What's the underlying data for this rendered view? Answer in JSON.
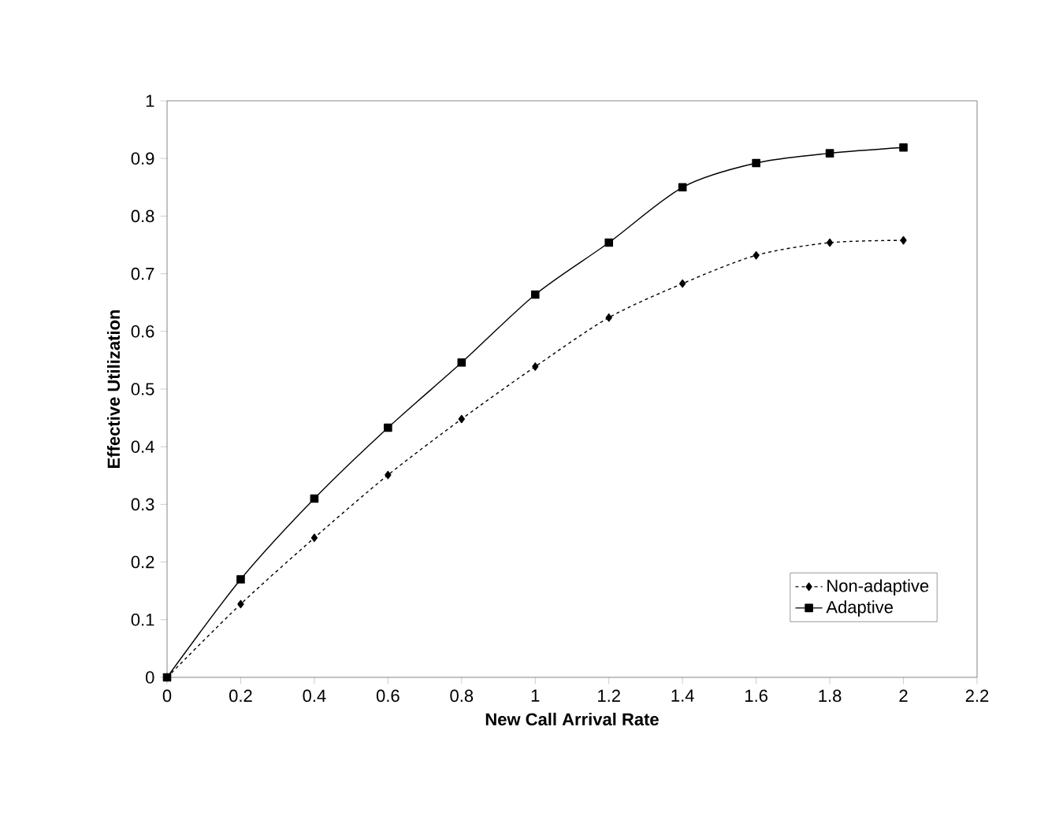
{
  "chart_data": {
    "type": "line",
    "xlabel": "New Call Arrival Rate",
    "ylabel": "Effective Utilization",
    "x": [
      0,
      0.2,
      0.4,
      0.6,
      0.8,
      1,
      1.2,
      1.4,
      1.6,
      1.8,
      2
    ],
    "series": [
      {
        "name": "Non-adaptive",
        "color": "#000000",
        "marker": "diamond",
        "line_style": "dotted",
        "values": [
          0,
          0.127,
          0.242,
          0.351,
          0.448,
          0.539,
          0.624,
          0.683,
          0.732,
          0.754,
          0.758
        ]
      },
      {
        "name": "Adaptive",
        "color": "#000000",
        "marker": "square",
        "line_style": "solid",
        "values": [
          0,
          0.17,
          0.31,
          0.433,
          0.546,
          0.664,
          0.754,
          0.85,
          0.892,
          0.909,
          0.919
        ]
      }
    ],
    "xlim": [
      0,
      2.2
    ],
    "xticks": [
      0,
      0.2,
      0.4,
      0.6,
      0.8,
      1,
      1.2,
      1.4,
      1.6,
      1.8,
      2,
      2.2
    ],
    "ylim": [
      0,
      1
    ],
    "yticks": [
      0,
      0.1,
      0.2,
      0.3,
      0.4,
      0.5,
      0.6,
      0.7,
      0.8,
      0.9,
      1
    ],
    "grid": false,
    "legend": "bottom right"
  }
}
